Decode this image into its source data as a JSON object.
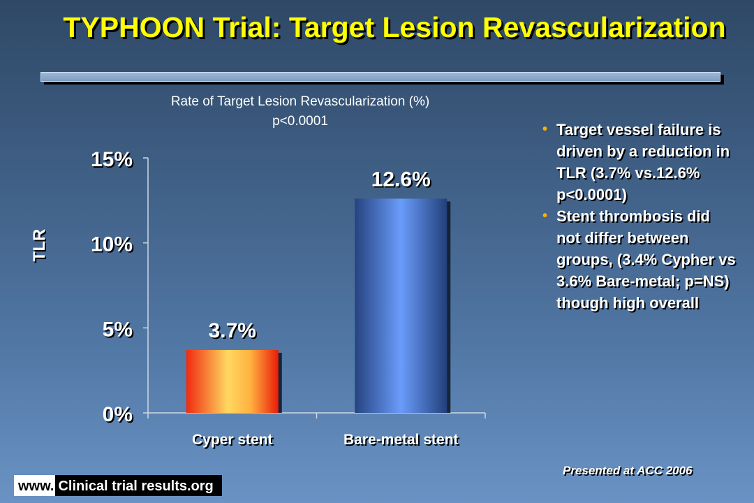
{
  "slide": {
    "title": "TYPHOON Trial: Target Lesion Revascularization",
    "presented": "Presented at ACC 2006",
    "footer_www": "www.",
    "footer_site": "Clinical trial results.org"
  },
  "bullets": [
    "Target vessel failure is driven by a reduction in TLR (3.7% vs.12.6% p<0.0001)",
    "Stent thrombosis did not differ between groups, (3.4% Cypher vs 3.6% Bare-metal; p=NS) though high overall"
  ],
  "chart_data": {
    "type": "bar",
    "title": "Rate of Target Lesion Revascularization (%)",
    "subtitle": "p<0.0001",
    "ylabel": "TLR",
    "xlabel": "",
    "categories": [
      "Cyper stent",
      "Bare-metal stent"
    ],
    "values": [
      3.7,
      12.6
    ],
    "data_labels": [
      "3.7%",
      "12.6%"
    ],
    "yticks": [
      0,
      5,
      10,
      15
    ],
    "ytick_labels": [
      "0%",
      "5%",
      "10%",
      "15%"
    ],
    "ylim": [
      0,
      15
    ],
    "grid": false,
    "colors": [
      "#f4a030",
      "#5a8ae0"
    ]
  }
}
